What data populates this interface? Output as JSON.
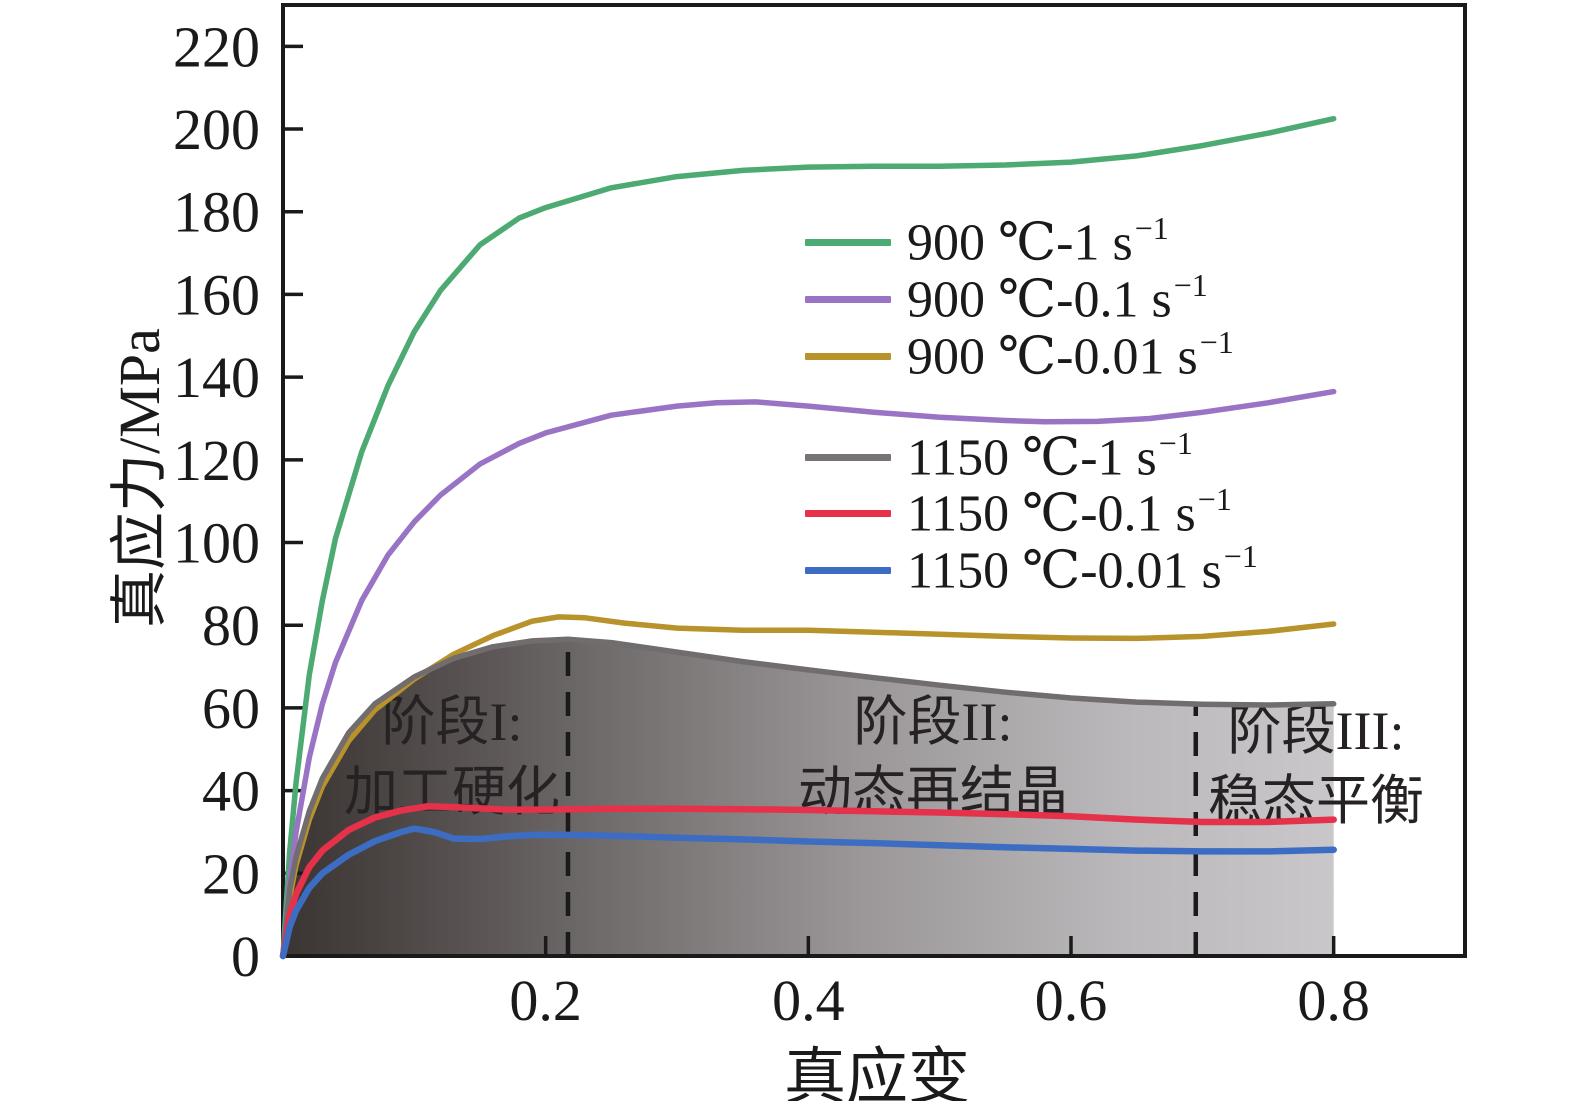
{
  "figure": {
    "x_axis_title": "真应变",
    "y_axis_title": "真应力/MPa",
    "background": "#ffffff",
    "border_color": "#1a1a1a"
  },
  "legend": {
    "groups": [
      {
        "items": [
          {
            "text": "900 ℃-1 s",
            "sup": "−1",
            "color": "#4caa72",
            "series": "900C-1s"
          },
          {
            "text": "900 ℃-0.1 s",
            "sup": "−1",
            "color": "#9a74c4",
            "series": "900C-0.1s"
          },
          {
            "text": "900 ℃-0.01 s",
            "sup": "−1",
            "color": "#b8922b",
            "series": "900C-0.01s"
          }
        ]
      },
      {
        "items": [
          {
            "text": "1150 ℃-1 s",
            "sup": "−1",
            "color": "#787475",
            "series": "1150C-1s"
          },
          {
            "text": "1150 ℃-0.1 s",
            "sup": "−1",
            "color": "#e6314b",
            "series": "1150C-0.1s"
          },
          {
            "text": "1150 ℃-0.01 s",
            "sup": "−1",
            "color": "#3d6dc2",
            "series": "1150C-0.01s"
          }
        ]
      }
    ]
  },
  "annotations": {
    "stage1": {
      "line1": "阶段I:",
      "line2": "加工硬化"
    },
    "stage2": {
      "line1": "阶段II:",
      "line2": "动态再结晶"
    },
    "stage3": {
      "line1": "阶段III:",
      "line2": "稳态平衡"
    }
  },
  "chart_data": {
    "type": "line",
    "title": "",
    "xlabel": "真应变",
    "ylabel": "真应力/MPa",
    "xlim": [
      0,
      0.9
    ],
    "ylim": [
      0,
      230
    ],
    "grid": false,
    "legend_position": "upper middle inside",
    "x_ticks": [
      {
        "v": 0.2,
        "label": "0.2"
      },
      {
        "v": 0.4,
        "label": "0.4"
      },
      {
        "v": 0.6,
        "label": "0.6"
      },
      {
        "v": 0.8,
        "label": "0.8"
      }
    ],
    "y_ticks": [
      {
        "v": 0,
        "label": "0"
      },
      {
        "v": 20,
        "label": "20"
      },
      {
        "v": 40,
        "label": "40"
      },
      {
        "v": 60,
        "label": "60"
      },
      {
        "v": 80,
        "label": "80"
      },
      {
        "v": 100,
        "label": "100"
      },
      {
        "v": 120,
        "label": "120"
      },
      {
        "v": 140,
        "label": "140"
      },
      {
        "v": 160,
        "label": "160"
      },
      {
        "v": 180,
        "label": "180"
      },
      {
        "v": 200,
        "label": "200"
      },
      {
        "v": 220,
        "label": "220"
      }
    ],
    "dashed_lines": [
      {
        "x": 0.217,
        "y_top": 76.6,
        "meaning": "stage I / stage II boundary"
      },
      {
        "x": 0.695,
        "y_top": 60.9,
        "meaning": "stage II / stage III boundary"
      }
    ],
    "area_fill": {
      "under_series": "1150C-1s",
      "gradient_stops": [
        {
          "offset": 0.0,
          "color": "#3a3433"
        },
        {
          "offset": 0.08,
          "color": "#474140"
        },
        {
          "offset": 0.3,
          "color": "#6f6b6a"
        },
        {
          "offset": 0.55,
          "color": "#9b9799"
        },
        {
          "offset": 0.8,
          "color": "#bab8ba"
        },
        {
          "offset": 1.0,
          "color": "#c9c7c9"
        }
      ]
    },
    "series": [
      {
        "name": "900C-1s",
        "label": "900 ℃-1 s⁻¹",
        "color": "#4caa72",
        "width": 5.5,
        "points": [
          [
            0,
            0
          ],
          [
            0.005,
            25
          ],
          [
            0.01,
            42
          ],
          [
            0.02,
            68
          ],
          [
            0.03,
            86
          ],
          [
            0.04,
            101
          ],
          [
            0.06,
            122
          ],
          [
            0.08,
            138
          ],
          [
            0.1,
            151
          ],
          [
            0.12,
            161
          ],
          [
            0.15,
            172
          ],
          [
            0.18,
            178.5
          ],
          [
            0.2,
            181
          ],
          [
            0.25,
            185.8
          ],
          [
            0.3,
            188.5
          ],
          [
            0.35,
            190
          ],
          [
            0.4,
            190.8
          ],
          [
            0.45,
            191
          ],
          [
            0.5,
            191
          ],
          [
            0.55,
            191.3
          ],
          [
            0.6,
            192
          ],
          [
            0.65,
            193.5
          ],
          [
            0.7,
            196
          ],
          [
            0.75,
            199
          ],
          [
            0.8,
            202.5
          ]
        ]
      },
      {
        "name": "900C-0.1s",
        "label": "900 ℃-0.1 s⁻¹",
        "color": "#9a74c4",
        "width": 5.5,
        "points": [
          [
            0,
            0
          ],
          [
            0.005,
            18
          ],
          [
            0.01,
            30
          ],
          [
            0.02,
            48
          ],
          [
            0.03,
            61
          ],
          [
            0.04,
            71
          ],
          [
            0.06,
            86
          ],
          [
            0.08,
            97
          ],
          [
            0.1,
            105
          ],
          [
            0.12,
            111.5
          ],
          [
            0.15,
            119
          ],
          [
            0.18,
            124
          ],
          [
            0.2,
            126.5
          ],
          [
            0.25,
            130.8
          ],
          [
            0.3,
            133
          ],
          [
            0.33,
            133.8
          ],
          [
            0.36,
            134
          ],
          [
            0.4,
            133
          ],
          [
            0.45,
            131.5
          ],
          [
            0.5,
            130.3
          ],
          [
            0.55,
            129.5
          ],
          [
            0.58,
            129.2
          ],
          [
            0.62,
            129.3
          ],
          [
            0.66,
            130
          ],
          [
            0.7,
            131.5
          ],
          [
            0.75,
            133.8
          ],
          [
            0.8,
            136.5
          ]
        ]
      },
      {
        "name": "900C-0.01s",
        "label": "900 ℃-0.01 s⁻¹",
        "color": "#b8922b",
        "width": 5.5,
        "points": [
          [
            0,
            0
          ],
          [
            0.005,
            14
          ],
          [
            0.01,
            22
          ],
          [
            0.02,
            33
          ],
          [
            0.03,
            41
          ],
          [
            0.05,
            52
          ],
          [
            0.07,
            59.5
          ],
          [
            0.1,
            67
          ],
          [
            0.13,
            73
          ],
          [
            0.16,
            77.5
          ],
          [
            0.19,
            81
          ],
          [
            0.21,
            82
          ],
          [
            0.23,
            81.8
          ],
          [
            0.26,
            80.5
          ],
          [
            0.3,
            79.3
          ],
          [
            0.35,
            78.8
          ],
          [
            0.4,
            78.8
          ],
          [
            0.45,
            78.3
          ],
          [
            0.5,
            77.8
          ],
          [
            0.55,
            77.3
          ],
          [
            0.6,
            76.9
          ],
          [
            0.65,
            76.8
          ],
          [
            0.7,
            77.3
          ],
          [
            0.75,
            78.5
          ],
          [
            0.8,
            80.3
          ]
        ]
      },
      {
        "name": "1150C-1s",
        "label": "1150 ℃-1 s⁻¹",
        "color": "#716d6e",
        "width": 5.5,
        "points": [
          [
            0,
            0
          ],
          [
            0.005,
            16
          ],
          [
            0.01,
            24
          ],
          [
            0.02,
            35
          ],
          [
            0.03,
            43
          ],
          [
            0.05,
            54
          ],
          [
            0.07,
            61
          ],
          [
            0.1,
            67.5
          ],
          [
            0.13,
            72
          ],
          [
            0.16,
            74.8
          ],
          [
            0.19,
            76.2
          ],
          [
            0.217,
            76.6
          ],
          [
            0.25,
            75.8
          ],
          [
            0.3,
            73.5
          ],
          [
            0.35,
            71.2
          ],
          [
            0.4,
            69.2
          ],
          [
            0.45,
            67.3
          ],
          [
            0.5,
            65.5
          ],
          [
            0.55,
            63.8
          ],
          [
            0.6,
            62.4
          ],
          [
            0.65,
            61.4
          ],
          [
            0.7,
            60.9
          ],
          [
            0.75,
            60.7
          ],
          [
            0.8,
            61
          ]
        ]
      },
      {
        "name": "1150C-0.1s",
        "label": "1150 ℃-0.1 s⁻¹",
        "color": "#e6314b",
        "width": 6.5,
        "points": [
          [
            0,
            0
          ],
          [
            0.005,
            10
          ],
          [
            0.01,
            15
          ],
          [
            0.02,
            21.5
          ],
          [
            0.03,
            25.5
          ],
          [
            0.05,
            30.5
          ],
          [
            0.07,
            33.5
          ],
          [
            0.09,
            35.2
          ],
          [
            0.11,
            36.2
          ],
          [
            0.13,
            36
          ],
          [
            0.15,
            35.7
          ],
          [
            0.17,
            35.4
          ],
          [
            0.2,
            35.4
          ],
          [
            0.25,
            35.6
          ],
          [
            0.3,
            35.6
          ],
          [
            0.35,
            35.5
          ],
          [
            0.4,
            35.3
          ],
          [
            0.45,
            35
          ],
          [
            0.5,
            34.7
          ],
          [
            0.55,
            34.3
          ],
          [
            0.6,
            33.8
          ],
          [
            0.65,
            33
          ],
          [
            0.7,
            32.4
          ],
          [
            0.75,
            32.4
          ],
          [
            0.8,
            33
          ]
        ]
      },
      {
        "name": "1150C-0.01s",
        "label": "1150 ℃-0.01 s⁻¹",
        "color": "#3d6dc2",
        "width": 6.5,
        "points": [
          [
            0,
            0
          ],
          [
            0.005,
            7
          ],
          [
            0.01,
            11
          ],
          [
            0.02,
            16.5
          ],
          [
            0.03,
            20
          ],
          [
            0.05,
            24.5
          ],
          [
            0.07,
            27.8
          ],
          [
            0.09,
            30
          ],
          [
            0.1,
            30.8
          ],
          [
            0.115,
            30
          ],
          [
            0.13,
            28.4
          ],
          [
            0.15,
            28.3
          ],
          [
            0.17,
            28.9
          ],
          [
            0.19,
            29.3
          ],
          [
            0.22,
            29.3
          ],
          [
            0.26,
            29
          ],
          [
            0.3,
            28.6
          ],
          [
            0.35,
            28.2
          ],
          [
            0.4,
            27.7
          ],
          [
            0.45,
            27.3
          ],
          [
            0.5,
            26.8
          ],
          [
            0.55,
            26.3
          ],
          [
            0.6,
            25.9
          ],
          [
            0.65,
            25.5
          ],
          [
            0.7,
            25.3
          ],
          [
            0.75,
            25.3
          ],
          [
            0.8,
            25.7
          ]
        ]
      }
    ]
  }
}
